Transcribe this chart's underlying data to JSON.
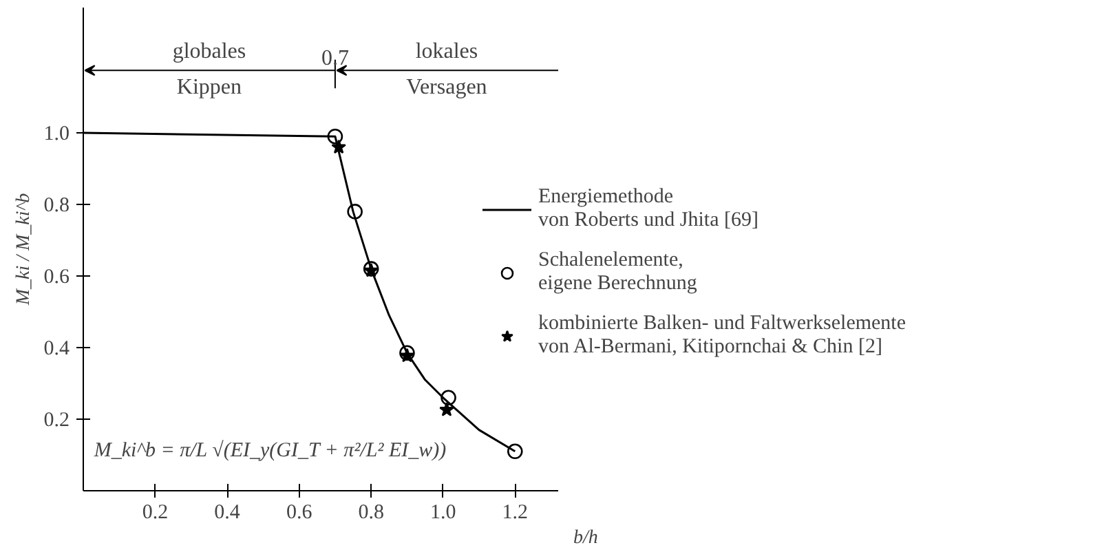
{
  "chart_data": {
    "type": "line",
    "xlabel": "b/h",
    "ylabel": "M_ki / M_ki^b",
    "xlim": [
      0,
      1.32
    ],
    "ylim": [
      0,
      1.35
    ],
    "xticks": [
      0.2,
      0.4,
      0.6,
      0.8,
      {
        "value": 1.0,
        "label": "1.0"
      },
      1.2
    ],
    "yticks": [
      0.2,
      0.4,
      0.6,
      0.8,
      {
        "value": 1.0,
        "label": "1.0"
      }
    ],
    "grid": false,
    "legend": "right",
    "series": [
      {
        "name": "Energiemethode\nvon Roberts und Jhita [69]",
        "color": "#000000",
        "marker": "none",
        "line_style": "solid",
        "x": [
          0,
          0.7,
          0.75,
          0.8,
          0.85,
          0.9,
          0.95,
          1.0,
          1.1,
          1.2
        ],
        "values": [
          1.0,
          0.99,
          0.78,
          0.62,
          0.49,
          0.385,
          0.31,
          0.26,
          0.17,
          0.11
        ]
      },
      {
        "name": "Schalenelemente,\neigene Berechnung",
        "type": "scatter",
        "color": "#000000",
        "marker": "circle",
        "x": [
          0.7,
          0.755,
          0.8,
          0.9,
          1.015,
          1.2
        ],
        "values": [
          0.99,
          0.78,
          0.62,
          0.385,
          0.26,
          0.11
        ]
      },
      {
        "name": "kombinierte Balken- und Faltwerkselemente\nvon Al-Bermani, Kitipornchai & Chin [2]",
        "type": "scatter",
        "color": "#000000",
        "marker": "star",
        "x": [
          0.71,
          0.8,
          0.9,
          1.01
        ],
        "values": [
          0.96,
          0.615,
          0.377,
          0.226
        ]
      }
    ],
    "ref_lines": [
      {
        "axis": "x",
        "value": 0.7,
        "label": "0.7"
      }
    ],
    "annotations": [
      "globales Kippen",
      "lokales Versagen",
      "M_ki^b = π/L √(EI_y(GI_T + π²/L² EI_w))"
    ]
  }
}
